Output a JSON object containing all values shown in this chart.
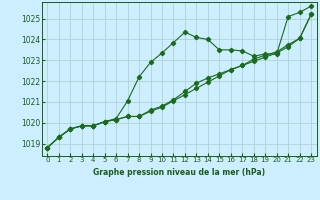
{
  "background_color": "#cceeff",
  "plot_bg_color": "#cceeff",
  "grid_color": "#aacccc",
  "text_color": "#1a5c1a",
  "line_color": "#1a6b1a",
  "xlabel": "Graphe pression niveau de la mer (hPa)",
  "ylim": [
    1018.4,
    1025.8
  ],
  "xlim": [
    -0.5,
    23.5
  ],
  "yticks": [
    1019,
    1020,
    1021,
    1022,
    1023,
    1024,
    1025
  ],
  "xticks": [
    0,
    1,
    2,
    3,
    4,
    5,
    6,
    7,
    8,
    9,
    10,
    11,
    12,
    13,
    14,
    15,
    16,
    17,
    18,
    19,
    20,
    21,
    22,
    23
  ],
  "series": {
    "line1": [
      1018.8,
      1019.3,
      1019.7,
      1019.85,
      1019.85,
      1020.05,
      1020.2,
      1021.05,
      1022.2,
      1022.9,
      1023.35,
      1023.85,
      1024.35,
      1024.1,
      1024.0,
      1023.5,
      1023.5,
      1023.45,
      1023.2,
      1023.3,
      1023.3,
      1025.1,
      1025.3,
      1025.6
    ],
    "line2": [
      1018.8,
      1019.3,
      1019.7,
      1019.85,
      1019.85,
      1020.05,
      1020.15,
      1020.3,
      1020.3,
      1020.55,
      1020.75,
      1021.05,
      1021.35,
      1021.65,
      1021.95,
      1022.25,
      1022.55,
      1022.75,
      1023.05,
      1023.25,
      1023.4,
      1023.75,
      1024.05,
      1025.2
    ],
    "line3": [
      1018.8,
      1019.3,
      1019.7,
      1019.85,
      1019.85,
      1020.05,
      1020.15,
      1020.3,
      1020.3,
      1020.6,
      1020.8,
      1021.1,
      1021.5,
      1021.9,
      1022.15,
      1022.35,
      1022.55,
      1022.75,
      1022.95,
      1023.15,
      1023.35,
      1023.65,
      1024.05,
      1025.2
    ]
  }
}
